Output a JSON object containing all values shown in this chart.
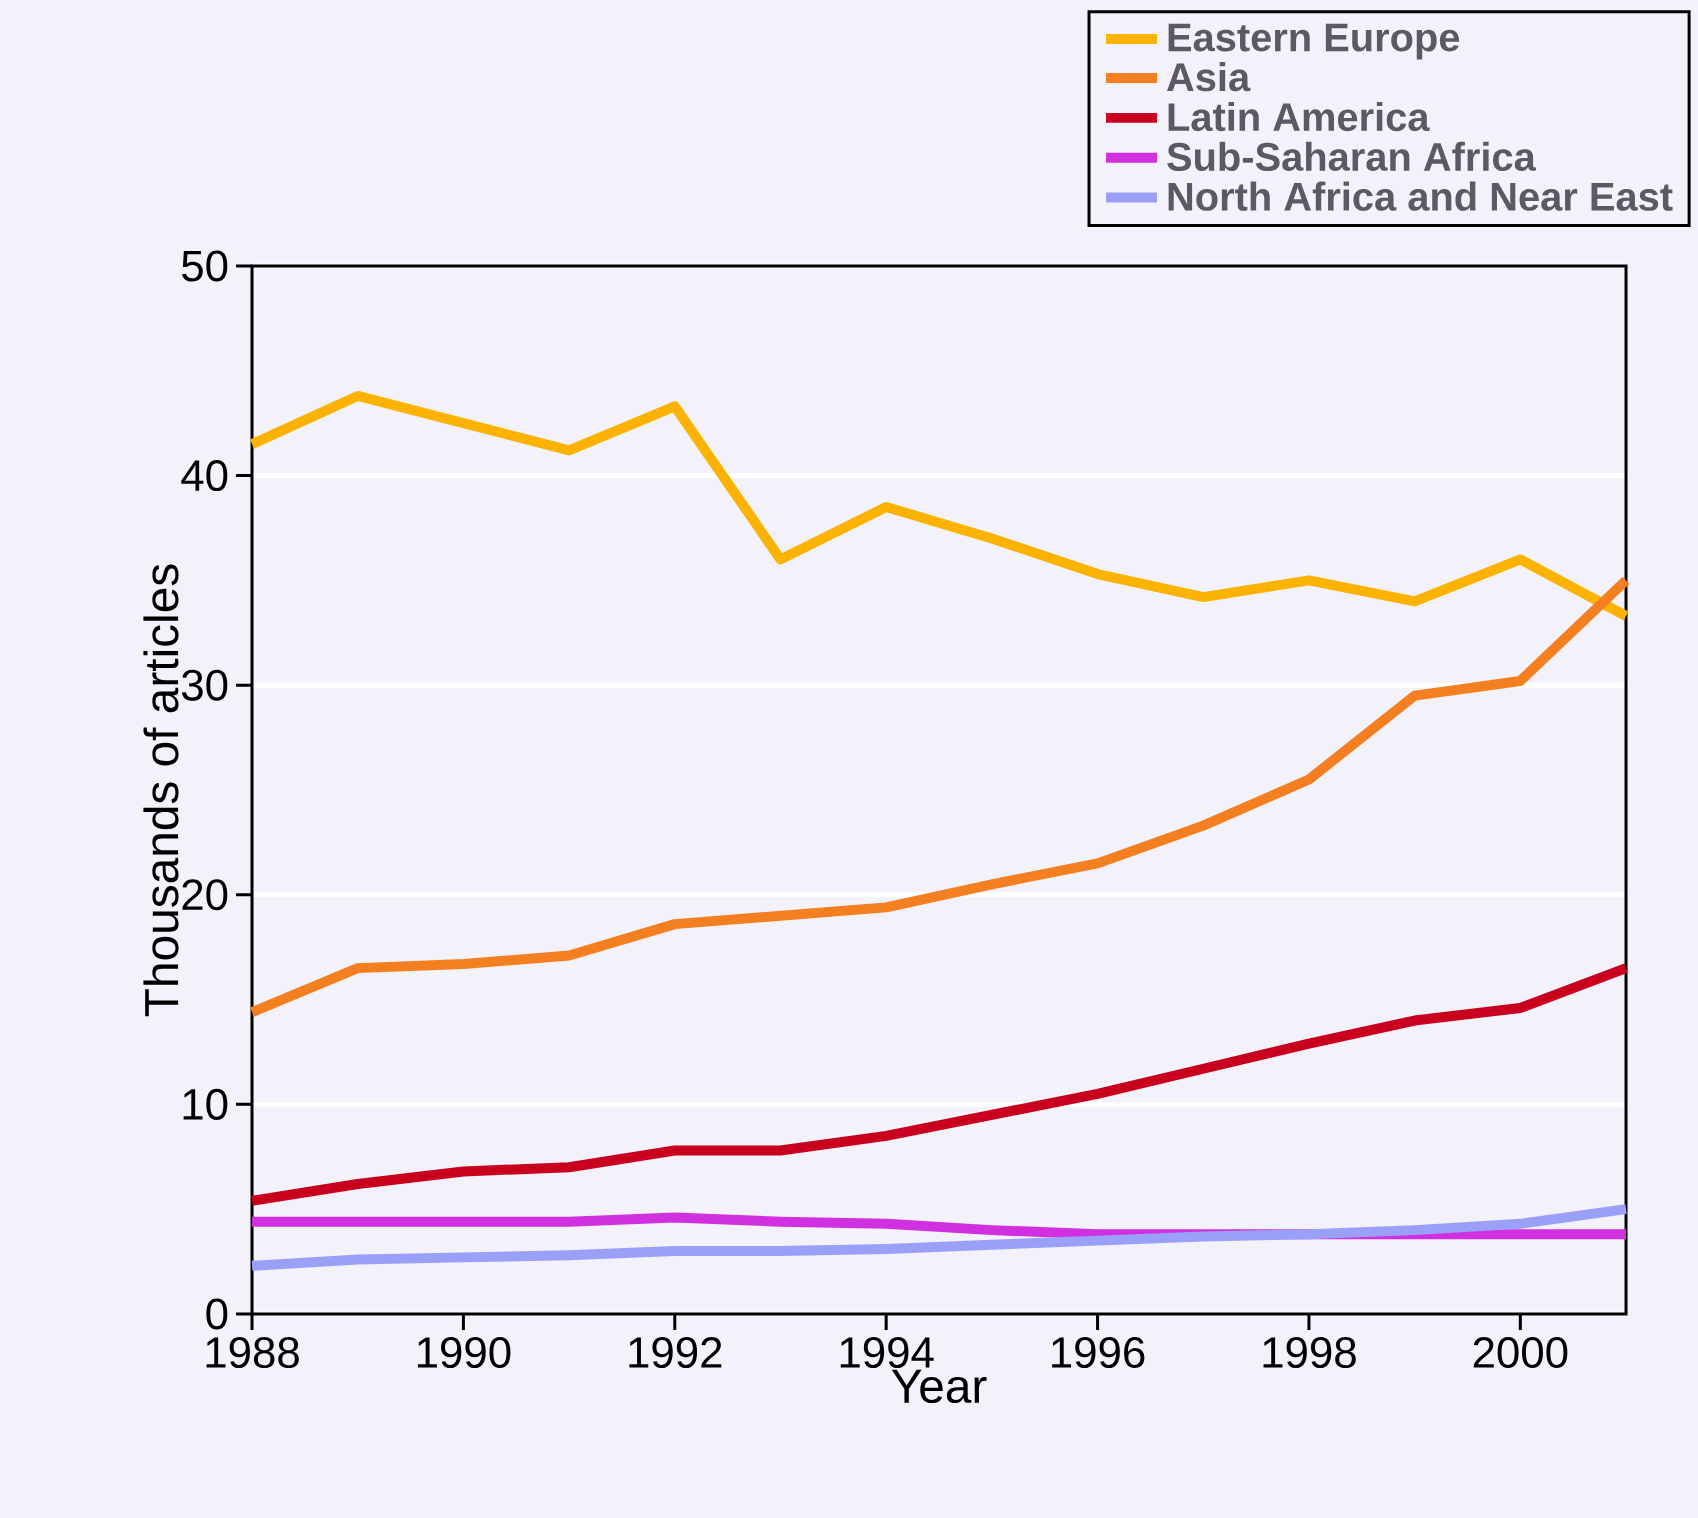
{
  "chart_data": {
    "type": "line",
    "xlabel": "Year",
    "ylabel": "Thousands of articles",
    "x": [
      1988,
      1989,
      1990,
      1991,
      1992,
      1993,
      1994,
      1995,
      1996,
      1997,
      1998,
      1999,
      2000,
      2001
    ],
    "series": [
      {
        "name": "Eastern Europe",
        "color": "#fbb200",
        "values": [
          41.5,
          43.8,
          42.5,
          41.2,
          43.3,
          36,
          38.5,
          37,
          35.3,
          34.2,
          35,
          34,
          36,
          33.3
        ]
      },
      {
        "name": "Asia",
        "color": "#f47f20",
        "values": [
          14.4,
          16.5,
          16.7,
          17.1,
          18.6,
          19,
          19.4,
          20.5,
          21.5,
          23.3,
          25.5,
          29.5,
          30.2,
          35
        ]
      },
      {
        "name": "Latin America",
        "color": "#c8001e",
        "values": [
          5.4,
          6.2,
          6.8,
          7.0,
          7.8,
          7.8,
          8.5,
          9.5,
          10.5,
          11.7,
          12.9,
          14.0,
          14.6,
          16.5
        ]
      },
      {
        "name": "Sub-Saharan Africa",
        "color": "#d030e0",
        "values": [
          4.4,
          4.4,
          4.4,
          4.4,
          4.6,
          4.4,
          4.3,
          4.0,
          3.8,
          3.8,
          3.8,
          3.8,
          3.8,
          3.8
        ]
      },
      {
        "name": "North Africa and Near East",
        "color": "#9aa0f8",
        "values": [
          2.3,
          2.6,
          2.7,
          2.8,
          3.0,
          3.0,
          3.1,
          3.3,
          3.5,
          3.7,
          3.8,
          4.0,
          4.3,
          5.0
        ]
      }
    ],
    "xlim": [
      1988,
      2001
    ],
    "xticks": [
      1988,
      1990,
      1992,
      1994,
      1996,
      1998,
      2000
    ],
    "ylim": [
      0,
      50
    ],
    "yticks": [
      0,
      10,
      20,
      30,
      40,
      50
    ],
    "grid": "y",
    "legend": "top right",
    "marker": "none",
    "line_style": "solid"
  }
}
